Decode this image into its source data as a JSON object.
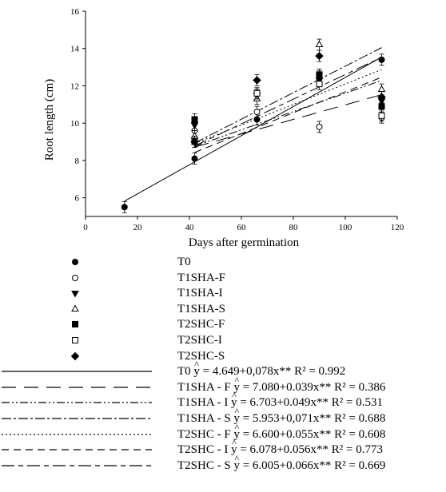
{
  "chart_data": {
    "type": "scatter",
    "xlabel": "Days after germination",
    "ylabel": "Root length (cm)",
    "xlim": [
      0,
      120
    ],
    "ylim": [
      5,
      16
    ],
    "xticks": [
      "0",
      "20",
      "40",
      "60",
      "80",
      "100",
      "120"
    ],
    "yticks": [
      "6",
      "8",
      "10",
      "12",
      "14",
      "16"
    ],
    "series": [
      {
        "name": "T0",
        "marker": "filled-circle",
        "x": [
          15,
          42,
          66,
          90,
          114
        ],
        "y": [
          5.5,
          8.1,
          10.2,
          12.5,
          13.4
        ]
      },
      {
        "name": "T1SHA-F",
        "marker": "open-circle",
        "x": [
          42,
          66,
          90,
          114
        ],
        "y": [
          9.6,
          10.6,
          9.8,
          10.3
        ]
      },
      {
        "name": "T1SHA-I",
        "marker": "filled-triangle-down",
        "x": [
          42,
          66,
          90,
          114
        ],
        "y": [
          9.9,
          11.5,
          12.3,
          11.2
        ]
      },
      {
        "name": "T1SHA-S",
        "marker": "open-triangle-up",
        "x": [
          42,
          66,
          90,
          114
        ],
        "y": [
          9.3,
          11.3,
          14.2,
          11.8
        ]
      },
      {
        "name": "T2SHC-F",
        "marker": "filled-square",
        "x": [
          42,
          66,
          90,
          114
        ],
        "y": [
          10.2,
          11.6,
          12.6,
          10.9
        ]
      },
      {
        "name": "T2SHC-I",
        "marker": "open-square",
        "x": [
          42,
          66,
          90,
          114
        ],
        "y": [
          9.0,
          11.6,
          12.1,
          10.4
        ]
      },
      {
        "name": "T2SHC-S",
        "marker": "filled-diamond",
        "x": [
          42,
          66,
          90,
          114
        ],
        "y": [
          9.0,
          12.3,
          13.6,
          11.4
        ]
      }
    ],
    "regressions": [
      {
        "name": "T0",
        "intercept": 4.649,
        "slope": 0.078,
        "x_range": [
          15,
          114
        ],
        "dash": "solid",
        "label": "T0",
        "equation": "= 4.649+0,078x** R² = 0.992"
      },
      {
        "name": "T1SHA-F",
        "intercept": 7.08,
        "slope": 0.039,
        "x_range": [
          42,
          114
        ],
        "dash": "long-dash",
        "label": "T1SHA - F",
        "equation": "= 7.080+0.039x** R² = 0.386"
      },
      {
        "name": "T1SHA-I",
        "intercept": 6.703,
        "slope": 0.049,
        "x_range": [
          42,
          114
        ],
        "dash": "dash-dot-dot",
        "label": "T1SHA - I",
        "equation": "= 6.703+0.049x** R² = 0.531"
      },
      {
        "name": "T1SHA-S",
        "intercept": 5.953,
        "slope": 0.071,
        "x_range": [
          42,
          114
        ],
        "dash": "dash-dot",
        "label": "T1SHA - S",
        "equation": "= 5.953+0,071x** R² = 0.688"
      },
      {
        "name": "T2SHC-F",
        "intercept": 6.6,
        "slope": 0.055,
        "x_range": [
          42,
          114
        ],
        "dash": "dotted",
        "label": "T2SHC - F",
        "equation": "= 6.600+0.055x** R² = 0.608"
      },
      {
        "name": "T2SHC-I",
        "intercept": 6.078,
        "slope": 0.056,
        "x_range": [
          42,
          114
        ],
        "dash": "medium-dash",
        "label": "T2SHC - I",
        "equation": "= 6.078+0.056x** R² = 0.773"
      },
      {
        "name": "T2SHC-S",
        "intercept": 6.005,
        "slope": 0.066,
        "x_range": [
          42,
          114
        ],
        "dash": "long-short-dash",
        "label": "T2SHC - S",
        "equation": "= 6.005+0.066x** R² = 0.669"
      }
    ],
    "yhat_symbol": "y",
    "legend_position": "below"
  }
}
